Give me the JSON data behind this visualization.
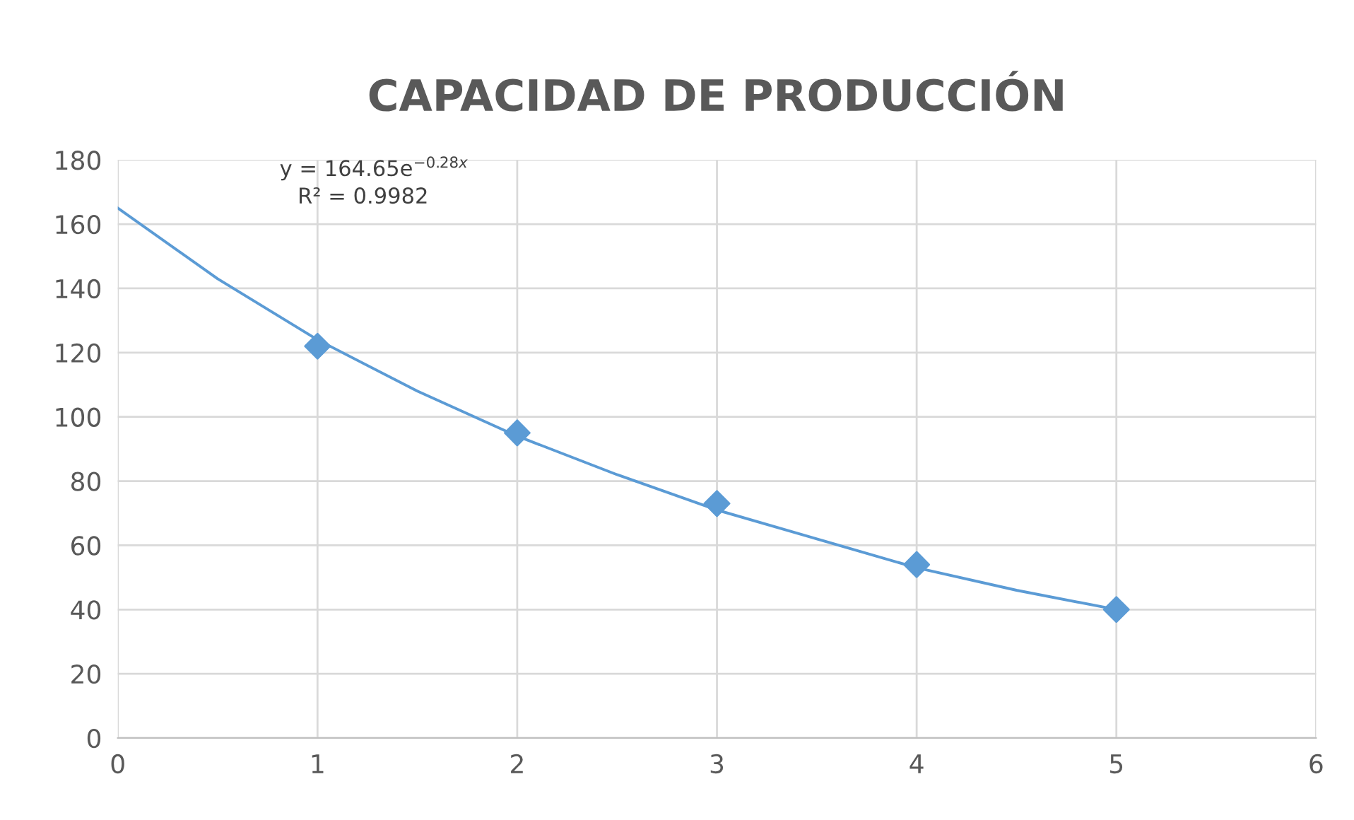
{
  "chart_data": {
    "type": "scatter",
    "title": "CAPACIDAD DE PRODUCCIÓN",
    "series": [
      {
        "color": "#5b9bd5",
        "marker": "diamond",
        "x": [
          1,
          2,
          3,
          4,
          5
        ],
        "values": [
          122,
          95,
          73,
          54,
          40
        ]
      },
      {
        "type": "line",
        "color": "#5b9bd5",
        "marker": "none",
        "line_style": "solid",
        "x": [
          0,
          0.5,
          1,
          1.5,
          2,
          2.5,
          3,
          3.5,
          4,
          4.5,
          5
        ],
        "values": [
          165,
          143,
          124,
          108,
          94,
          82,
          71,
          62,
          53,
          46,
          40
        ]
      }
    ],
    "xlim": [
      0,
      6
    ],
    "xticks": [
      0,
      1,
      2,
      3,
      4,
      5,
      6
    ],
    "ylim": [
      0,
      180
    ],
    "yticks": [
      0,
      20,
      40,
      60,
      80,
      100,
      120,
      140,
      160,
      180
    ],
    "grid": true,
    "legend": false,
    "annotations": [
      "y = 164.65e$^{−0.28x}$",
      "R² = 0.9982"
    ]
  }
}
